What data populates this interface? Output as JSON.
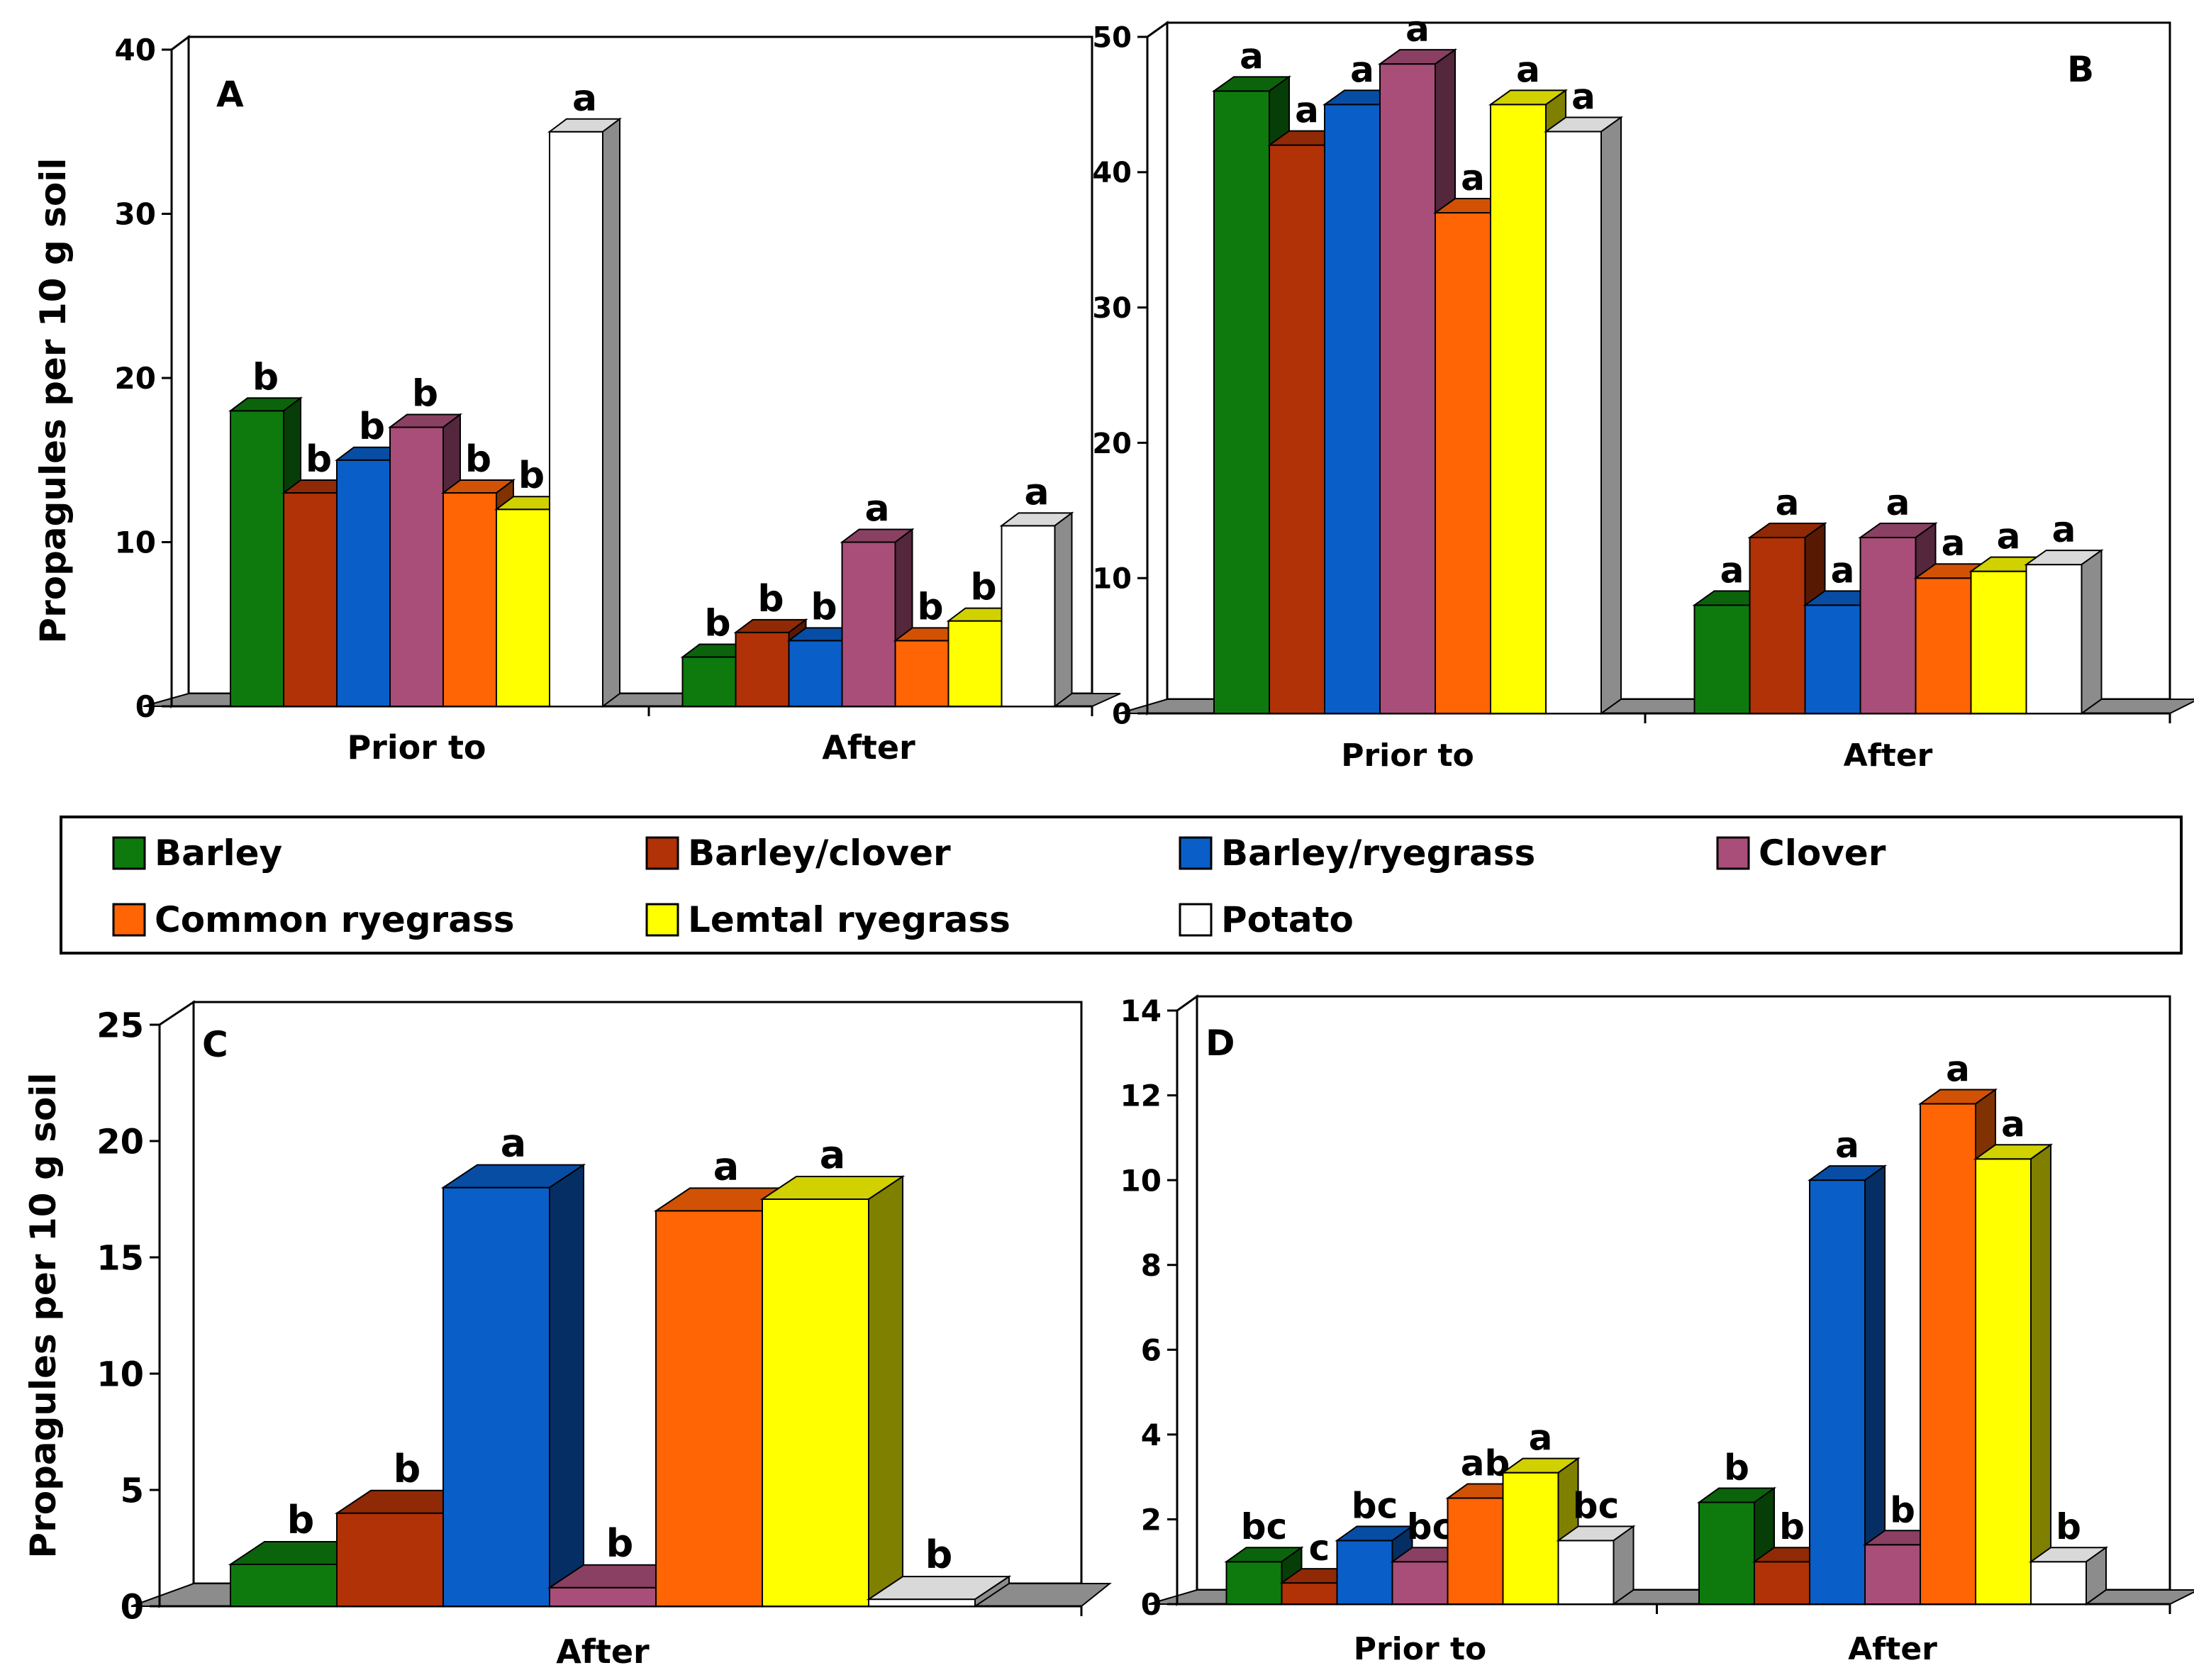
{
  "colors": {
    "Barley": "#0e7a0e",
    "Barley/clover": "#b03206",
    "Barley/ryegrass": "#0a5ec8",
    "Clover": "#a84e78",
    "Common ryegrass": "#ff6405",
    "Lemtal ryegrass": "#ffff00",
    "Potato": "#ffffff"
  },
  "legend": {
    "entries": [
      "Barley",
      "Barley/clover",
      "Barley/ryegrass",
      "Clover",
      "Common ryegrass",
      "Lemtal ryegrass",
      "Potato"
    ]
  },
  "y_axis_label": "Propagules per 10 g soil",
  "chart_data": [
    {
      "id": "A",
      "type": "bar",
      "label": "A",
      "ylabel": "Propagules per 10 g soil",
      "ylim": [
        0,
        40
      ],
      "yticks": [
        "0",
        "10",
        "20",
        "30",
        "40"
      ],
      "categories": [
        "Prior to",
        "After"
      ],
      "series": [
        {
          "name": "Barley",
          "values": [
            18,
            3
          ],
          "letters": [
            "b",
            "b"
          ]
        },
        {
          "name": "Barley/clover",
          "values": [
            13,
            4.5
          ],
          "letters": [
            "b",
            "b"
          ]
        },
        {
          "name": "Barley/ryegrass",
          "values": [
            15,
            4
          ],
          "letters": [
            "b",
            "b"
          ]
        },
        {
          "name": "Clover",
          "values": [
            17,
            10
          ],
          "letters": [
            "b",
            "a"
          ]
        },
        {
          "name": "Common ryegrass",
          "values": [
            13,
            4
          ],
          "letters": [
            "b",
            "b"
          ]
        },
        {
          "name": "Lemtal ryegrass",
          "values": [
            12,
            5.2
          ],
          "letters": [
            "b",
            "b"
          ]
        },
        {
          "name": "Potato",
          "values": [
            35,
            11
          ],
          "letters": [
            "a",
            "a"
          ]
        }
      ]
    },
    {
      "id": "B",
      "type": "bar",
      "label": "B",
      "ylabel": "",
      "ylim": [
        0,
        50
      ],
      "yticks": [
        "0",
        "10",
        "20",
        "30",
        "40",
        "50"
      ],
      "categories": [
        "Prior to",
        "After"
      ],
      "series": [
        {
          "name": "Barley",
          "values": [
            46,
            8
          ],
          "letters": [
            "a",
            "a"
          ]
        },
        {
          "name": "Barley/clover",
          "values": [
            42,
            13
          ],
          "letters": [
            "a",
            "a"
          ]
        },
        {
          "name": "Barley/ryegrass",
          "values": [
            45,
            8
          ],
          "letters": [
            "a",
            "a"
          ]
        },
        {
          "name": "Clover",
          "values": [
            48,
            13
          ],
          "letters": [
            "a",
            "a"
          ]
        },
        {
          "name": "Common ryegrass",
          "values": [
            37,
            10
          ],
          "letters": [
            "a",
            "a"
          ]
        },
        {
          "name": "Lemtal ryegrass",
          "values": [
            45,
            10.5
          ],
          "letters": [
            "a",
            "a"
          ]
        },
        {
          "name": "Potato",
          "values": [
            43,
            11
          ],
          "letters": [
            "a",
            "a"
          ]
        }
      ]
    },
    {
      "id": "C",
      "type": "bar",
      "label": "C",
      "ylabel": "Propagules per 10 g soil",
      "ylim": [
        0,
        25
      ],
      "yticks": [
        "0",
        "5",
        "10",
        "15",
        "20",
        "25"
      ],
      "categories": [
        "After"
      ],
      "series": [
        {
          "name": "Barley",
          "values": [
            1.8
          ],
          "letters": [
            "b"
          ]
        },
        {
          "name": "Barley/clover",
          "values": [
            4
          ],
          "letters": [
            "b"
          ]
        },
        {
          "name": "Barley/ryegrass",
          "values": [
            18
          ],
          "letters": [
            "a"
          ]
        },
        {
          "name": "Clover",
          "values": [
            0.8
          ],
          "letters": [
            "b"
          ]
        },
        {
          "name": "Common ryegrass",
          "values": [
            17
          ],
          "letters": [
            "a"
          ]
        },
        {
          "name": "Lemtal ryegrass",
          "values": [
            17.5
          ],
          "letters": [
            "a"
          ]
        },
        {
          "name": "Potato",
          "values": [
            0.3
          ],
          "letters": [
            "b"
          ]
        }
      ]
    },
    {
      "id": "D",
      "type": "bar",
      "label": "D",
      "ylabel": "",
      "ylim": [
        0,
        14
      ],
      "yticks": [
        "0",
        "2",
        "4",
        "6",
        "8",
        "10",
        "12",
        "14"
      ],
      "categories": [
        "Prior to",
        "After"
      ],
      "series": [
        {
          "name": "Barley",
          "values": [
            1,
            2.4
          ],
          "letters": [
            "bc",
            "b"
          ]
        },
        {
          "name": "Barley/clover",
          "values": [
            0.5,
            1
          ],
          "letters": [
            "c",
            "b"
          ]
        },
        {
          "name": "Barley/ryegrass",
          "values": [
            1.5,
            10
          ],
          "letters": [
            "bc",
            "a"
          ]
        },
        {
          "name": "Clover",
          "values": [
            1,
            1.4
          ],
          "letters": [
            "bc",
            "b"
          ]
        },
        {
          "name": "Common ryegrass",
          "values": [
            2.5,
            11.8
          ],
          "letters": [
            "ab",
            "a"
          ]
        },
        {
          "name": "Lemtal ryegrass",
          "values": [
            3.1,
            10.5
          ],
          "letters": [
            "a",
            "a"
          ]
        },
        {
          "name": "Potato",
          "values": [
            1.5,
            1
          ],
          "letters": [
            "bc",
            "b"
          ]
        }
      ]
    }
  ]
}
